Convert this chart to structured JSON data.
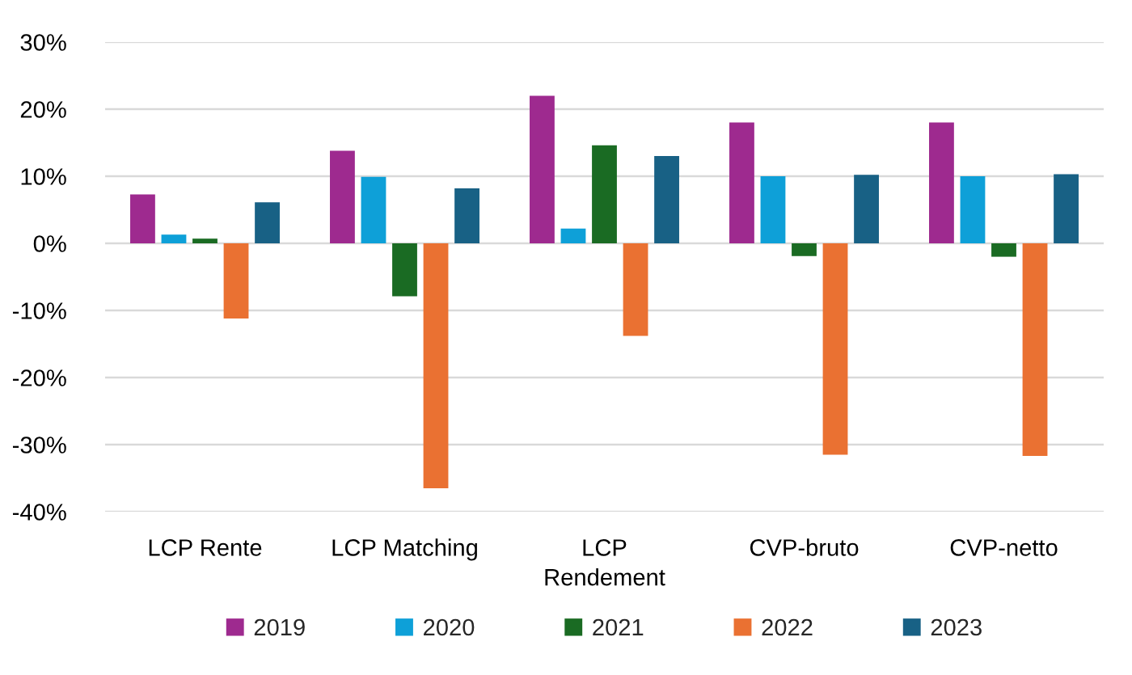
{
  "chart_data": {
    "type": "bar",
    "categories": [
      "LCP Rente",
      "LCP Matching",
      "LCP Rendement",
      "CVP-bruto",
      "CVP-netto"
    ],
    "series": [
      {
        "name": "2019",
        "color": "#9e2a8f",
        "values": [
          7.3,
          13.8,
          22.0,
          18.0,
          18.0
        ]
      },
      {
        "name": "2020",
        "color": "#0ea0d8",
        "values": [
          1.3,
          9.9,
          2.2,
          10.0,
          10.0
        ]
      },
      {
        "name": "2021",
        "color": "#1a6b23",
        "values": [
          0.7,
          -7.9,
          14.6,
          -1.9,
          -2.0
        ]
      },
      {
        "name": "2022",
        "color": "#ea7132",
        "values": [
          -11.2,
          -36.5,
          -13.8,
          -31.5,
          -31.7
        ]
      },
      {
        "name": "2023",
        "color": "#186185",
        "values": [
          6.1,
          8.2,
          13.0,
          10.2,
          10.3
        ]
      }
    ],
    "ylim": [
      -40,
      30
    ],
    "yticks": [
      {
        "value": -40,
        "label": "-40%"
      },
      {
        "value": -30,
        "label": "-30%"
      },
      {
        "value": -20,
        "label": "-20%"
      },
      {
        "value": -10,
        "label": "-10%"
      },
      {
        "value": 0,
        "label": "0%"
      },
      {
        "value": 10,
        "label": "10%"
      },
      {
        "value": 20,
        "label": "20%"
      },
      {
        "value": 30,
        "label": "30%"
      }
    ],
    "grid": "y",
    "legend": "bottom"
  }
}
